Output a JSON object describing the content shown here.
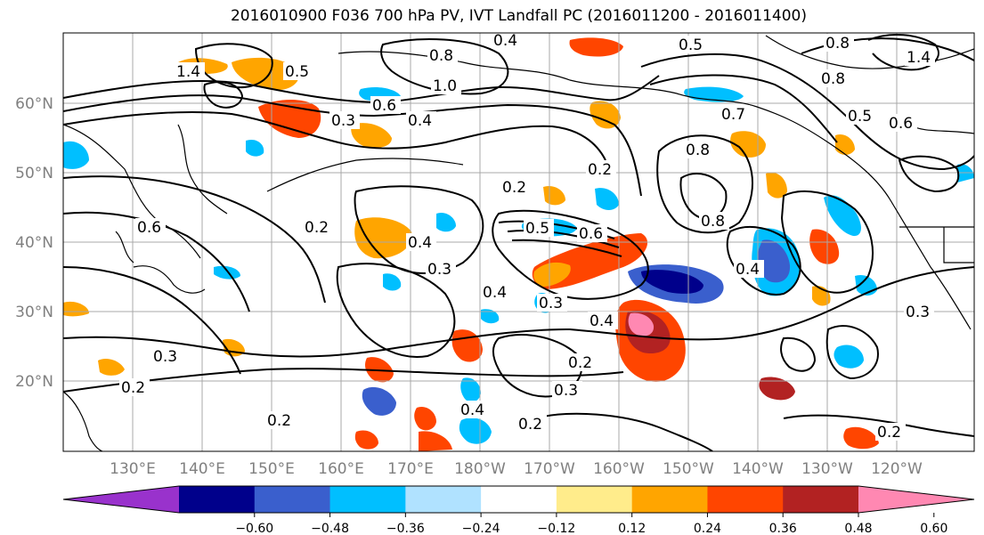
{
  "title": "2016010900 F036 700 hPa PV, IVT Landfall PC (2016011200 - 2016011400)",
  "lat_labels": [
    "60°N",
    "50°N",
    "40°N",
    "30°N",
    "20°N"
  ],
  "lon_labels": [
    "130°E",
    "140°E",
    "150°E",
    "160°E",
    "170°E",
    "180°W",
    "170°W",
    "160°W",
    "150°W",
    "140°W",
    "130°W",
    "120°W"
  ],
  "colorbar": {
    "colors": [
      "#9932cc",
      "#00008b",
      "#3a5fcd",
      "#00bfff",
      "#b0e2ff",
      "#ffffff",
      "#ffec8b",
      "#ffa500",
      "#ff4500",
      "#b22222",
      "#ff88b2"
    ],
    "ticks": [
      "−0.60",
      "−0.48",
      "−0.36",
      "−0.24",
      "−0.12",
      "0.12",
      "0.24",
      "0.36",
      "0.48",
      "0.60"
    ]
  },
  "contour_labels": [
    "0.2",
    "0.3",
    "0.4",
    "0.5",
    "0.6",
    "0.7",
    "0.8",
    "1.0",
    "1.4"
  ]
}
